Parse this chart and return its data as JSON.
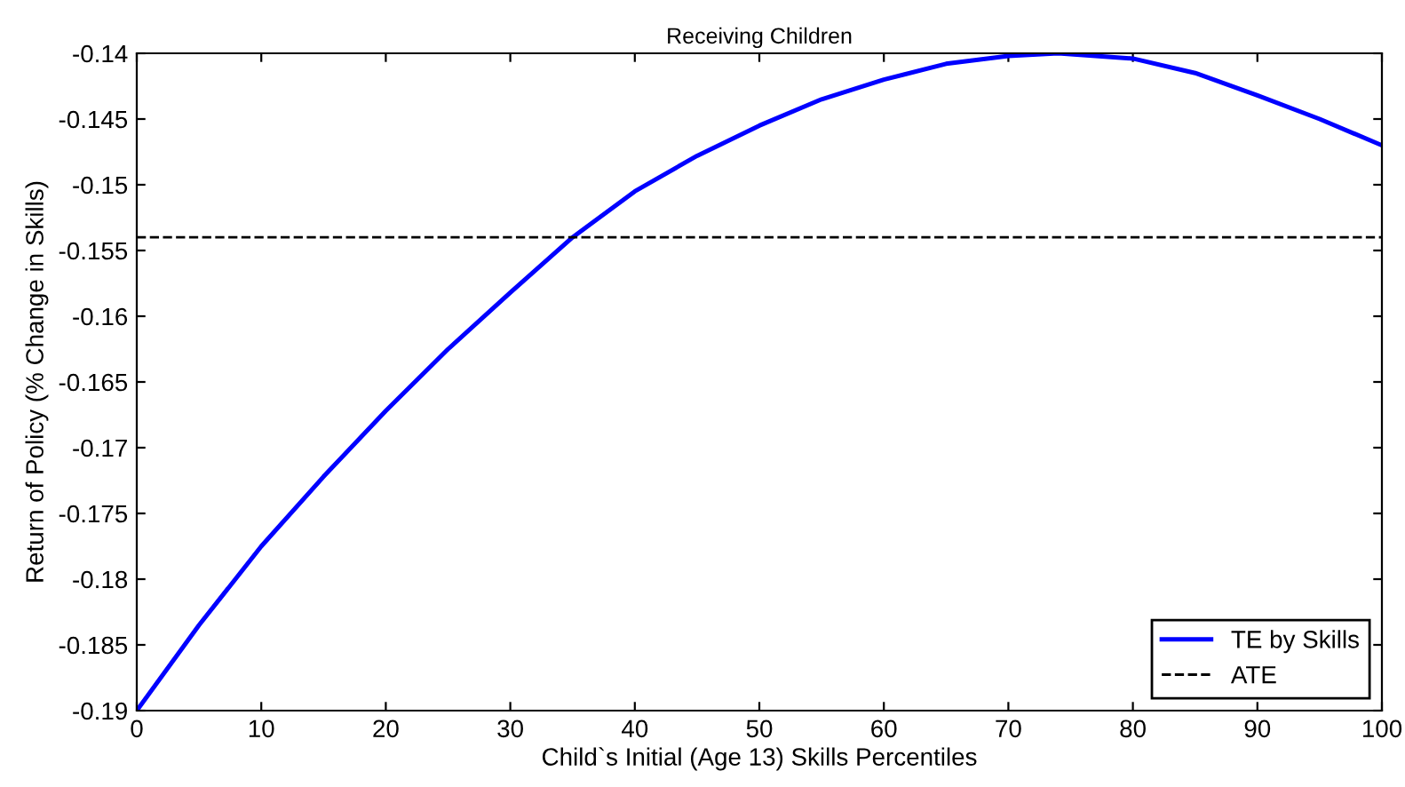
{
  "chart_data": {
    "type": "line",
    "title": "Receiving Children",
    "xlabel": "Child`s Initial (Age 13) Skills Percentiles",
    "ylabel": "Return of Policy (% Change in Skills)",
    "x": [
      0,
      5,
      10,
      15,
      20,
      25,
      30,
      35,
      40,
      45,
      50,
      55,
      60,
      65,
      70,
      74,
      80,
      85,
      90,
      95,
      100
    ],
    "series": [
      {
        "name": "TE by Skills",
        "color": "#0000ff",
        "values": [
          -0.19,
          -0.1835,
          -0.1775,
          -0.1722,
          -0.1672,
          -0.1625,
          -0.1582,
          -0.154,
          -0.1505,
          -0.1478,
          -0.1455,
          -0.1435,
          -0.142,
          -0.1408,
          -0.1402,
          -0.14,
          -0.1404,
          -0.1415,
          -0.1432,
          -0.145,
          -0.147
        ]
      }
    ],
    "ref_lines": [
      {
        "axis": "y",
        "value": -0.154,
        "label": "ATE",
        "color": "#000000",
        "line_style": "dashed"
      }
    ],
    "xlim": [
      0,
      100
    ],
    "ylim": [
      -0.19,
      -0.14
    ],
    "xticks": [
      0,
      10,
      20,
      30,
      40,
      50,
      60,
      70,
      80,
      90,
      100
    ],
    "yticks": [
      -0.19,
      -0.185,
      -0.18,
      -0.175,
      -0.17,
      -0.165,
      -0.16,
      -0.155,
      -0.15,
      -0.145,
      -0.14
    ],
    "grid": false,
    "legend": "bottom right",
    "marker": "none",
    "line_style": "solid"
  }
}
